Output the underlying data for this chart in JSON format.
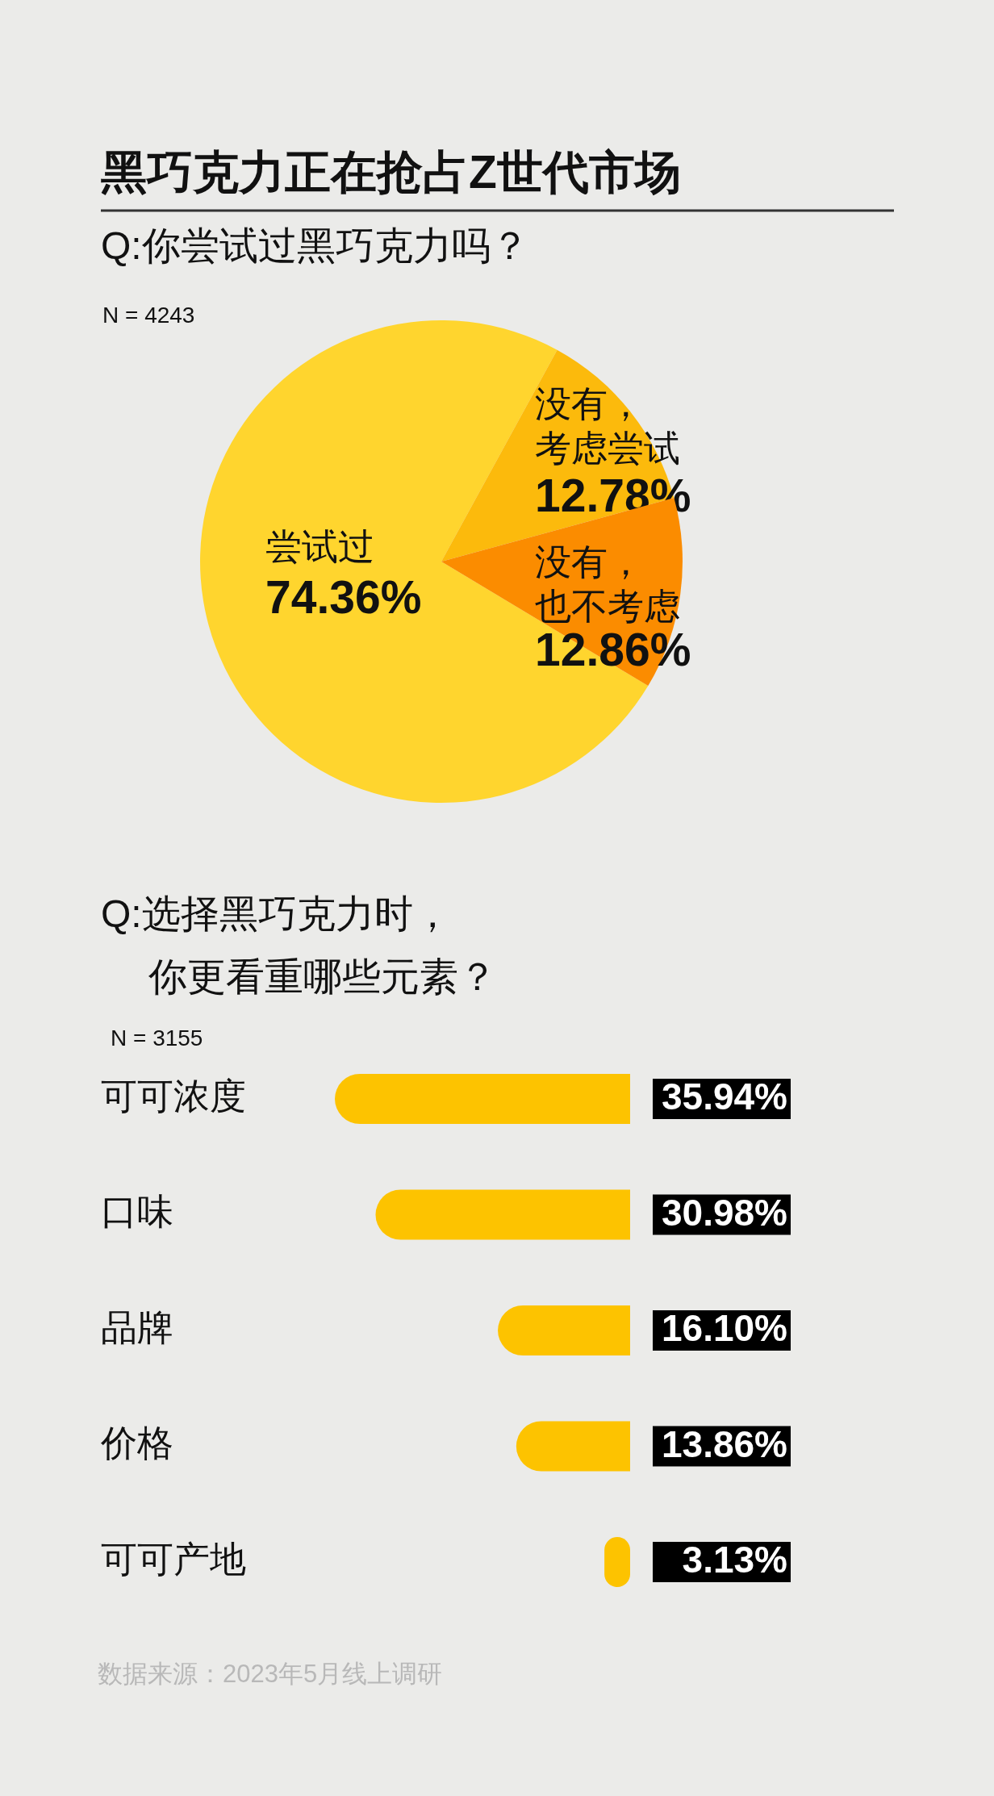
{
  "chart_data": [
    {
      "type": "pie",
      "title": "黑巧克力正在抢占Z世代市场",
      "subtitle": "Q:你尝试过黑巧克力吗？",
      "annotations": [
        "N = 4243"
      ],
      "categories": [
        "尝试过",
        "没有，考虑尝试",
        "没有，也不考虑"
      ],
      "values": [
        74.36,
        12.78,
        12.86
      ],
      "colors": [
        "#ffd52e",
        "#fcba0c",
        "#fb8c00"
      ],
      "value_labels": [
        "74.36%",
        "12.78%",
        "12.86%"
      ]
    },
    {
      "type": "bar",
      "orientation": "horizontal",
      "subtitle": "Q:选择黑巧克力时，你更看重哪些元素？",
      "annotations": [
        "N = 3155",
        "数据来源：2023年5月线上调研"
      ],
      "categories": [
        "可可浓度",
        "口味",
        "品牌",
        "价格",
        "可可产地"
      ],
      "values": [
        35.94,
        30.98,
        16.1,
        13.86,
        3.13
      ],
      "color": "#fdc300",
      "value_labels": [
        "35.94%",
        "30.98%",
        "16.10%",
        "13.86%",
        "3.13%"
      ]
    }
  ]
}
